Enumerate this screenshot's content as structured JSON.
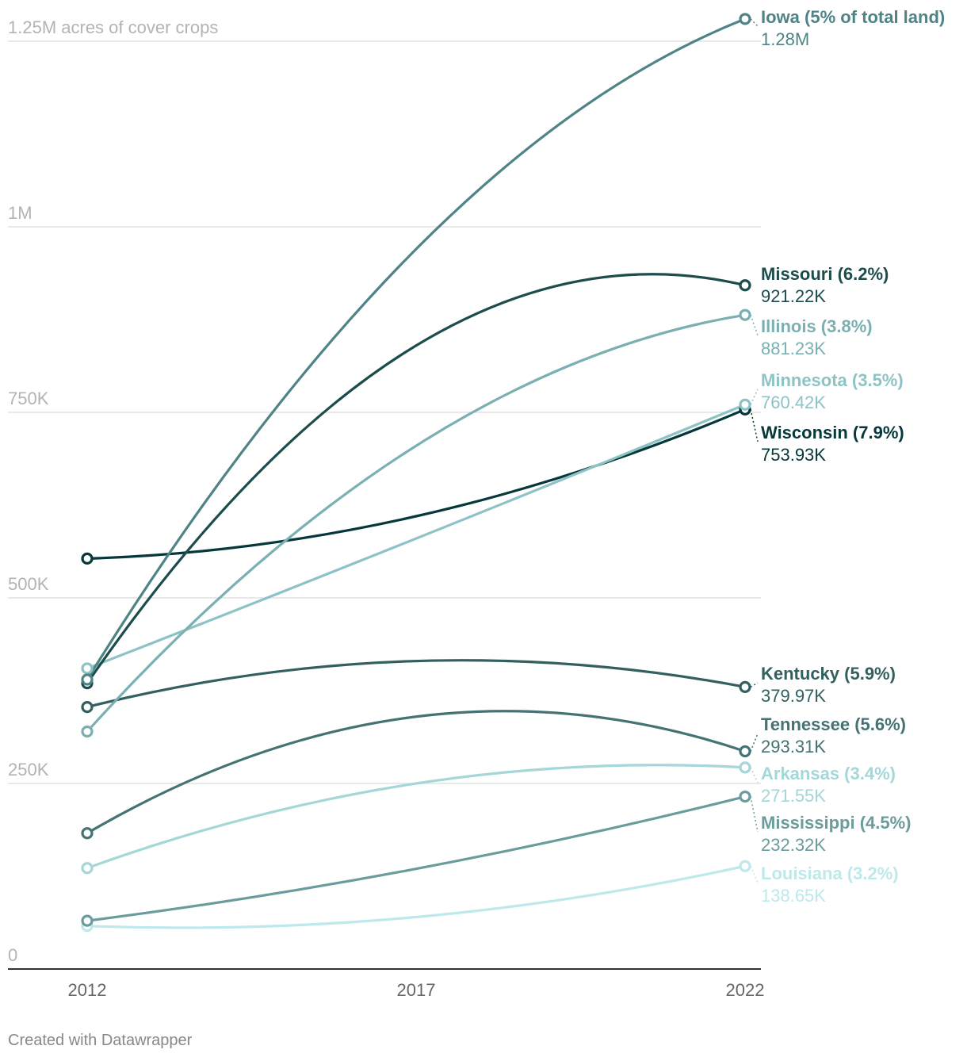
{
  "chart_data": {
    "type": "line",
    "categories": [
      "2012",
      "2017",
      "2022"
    ],
    "y_axis": {
      "ticks": [
        0,
        250000,
        500000,
        750000,
        1000000,
        1250000
      ],
      "tick_labels": [
        "0",
        "250K",
        "500K",
        "750K",
        "1M",
        "1.25M acres of cover crops"
      ],
      "ylim": [
        0,
        1250000
      ]
    },
    "series": [
      {
        "name": "Iowa (5% of total land)",
        "value_label": "1.28M",
        "color": "#4f8385",
        "values": [
          390000,
          970000,
          1280000
        ]
      },
      {
        "name": "Missouri (6.2%)",
        "value_label": "921.22K",
        "color": "#1d4c4c",
        "values": [
          385000,
          840000,
          921220
        ]
      },
      {
        "name": "Illinois (3.8%)",
        "value_label": "881.23K",
        "color": "#7ab0b2",
        "values": [
          320000,
          705000,
          881230
        ]
      },
      {
        "name": "Minnesota (3.5%)",
        "value_label": "760.42K",
        "color": "#8ec3c5",
        "values": [
          405000,
          580000,
          760420
        ]
      },
      {
        "name": "Wisconsin (7.9%)",
        "value_label": "753.93K",
        "color": "#06373a",
        "values": [
          553000,
          610000,
          753930
        ]
      },
      {
        "name": "Kentucky (5.9%)",
        "value_label": "379.97K",
        "color": "#33605f",
        "values": [
          353000,
          415000,
          379970
        ]
      },
      {
        "name": "Tennessee (5.6%)",
        "value_label": "293.31K",
        "color": "#457273",
        "values": [
          183000,
          340000,
          293310
        ]
      },
      {
        "name": "Arkansas (3.4%)",
        "value_label": "271.55K",
        "color": "#a5d6d8",
        "values": [
          136000,
          250000,
          271550
        ]
      },
      {
        "name": "Mississippi (4.5%)",
        "value_label": "232.32K",
        "color": "#6b9c9d",
        "values": [
          65000,
          135000,
          232320
        ]
      },
      {
        "name": "Louisiana (3.2%)",
        "value_label": "138.65K",
        "color": "#bde8ec",
        "values": [
          58000,
          70000,
          138650
        ]
      }
    ]
  },
  "credit": "Created with Datawrapper"
}
